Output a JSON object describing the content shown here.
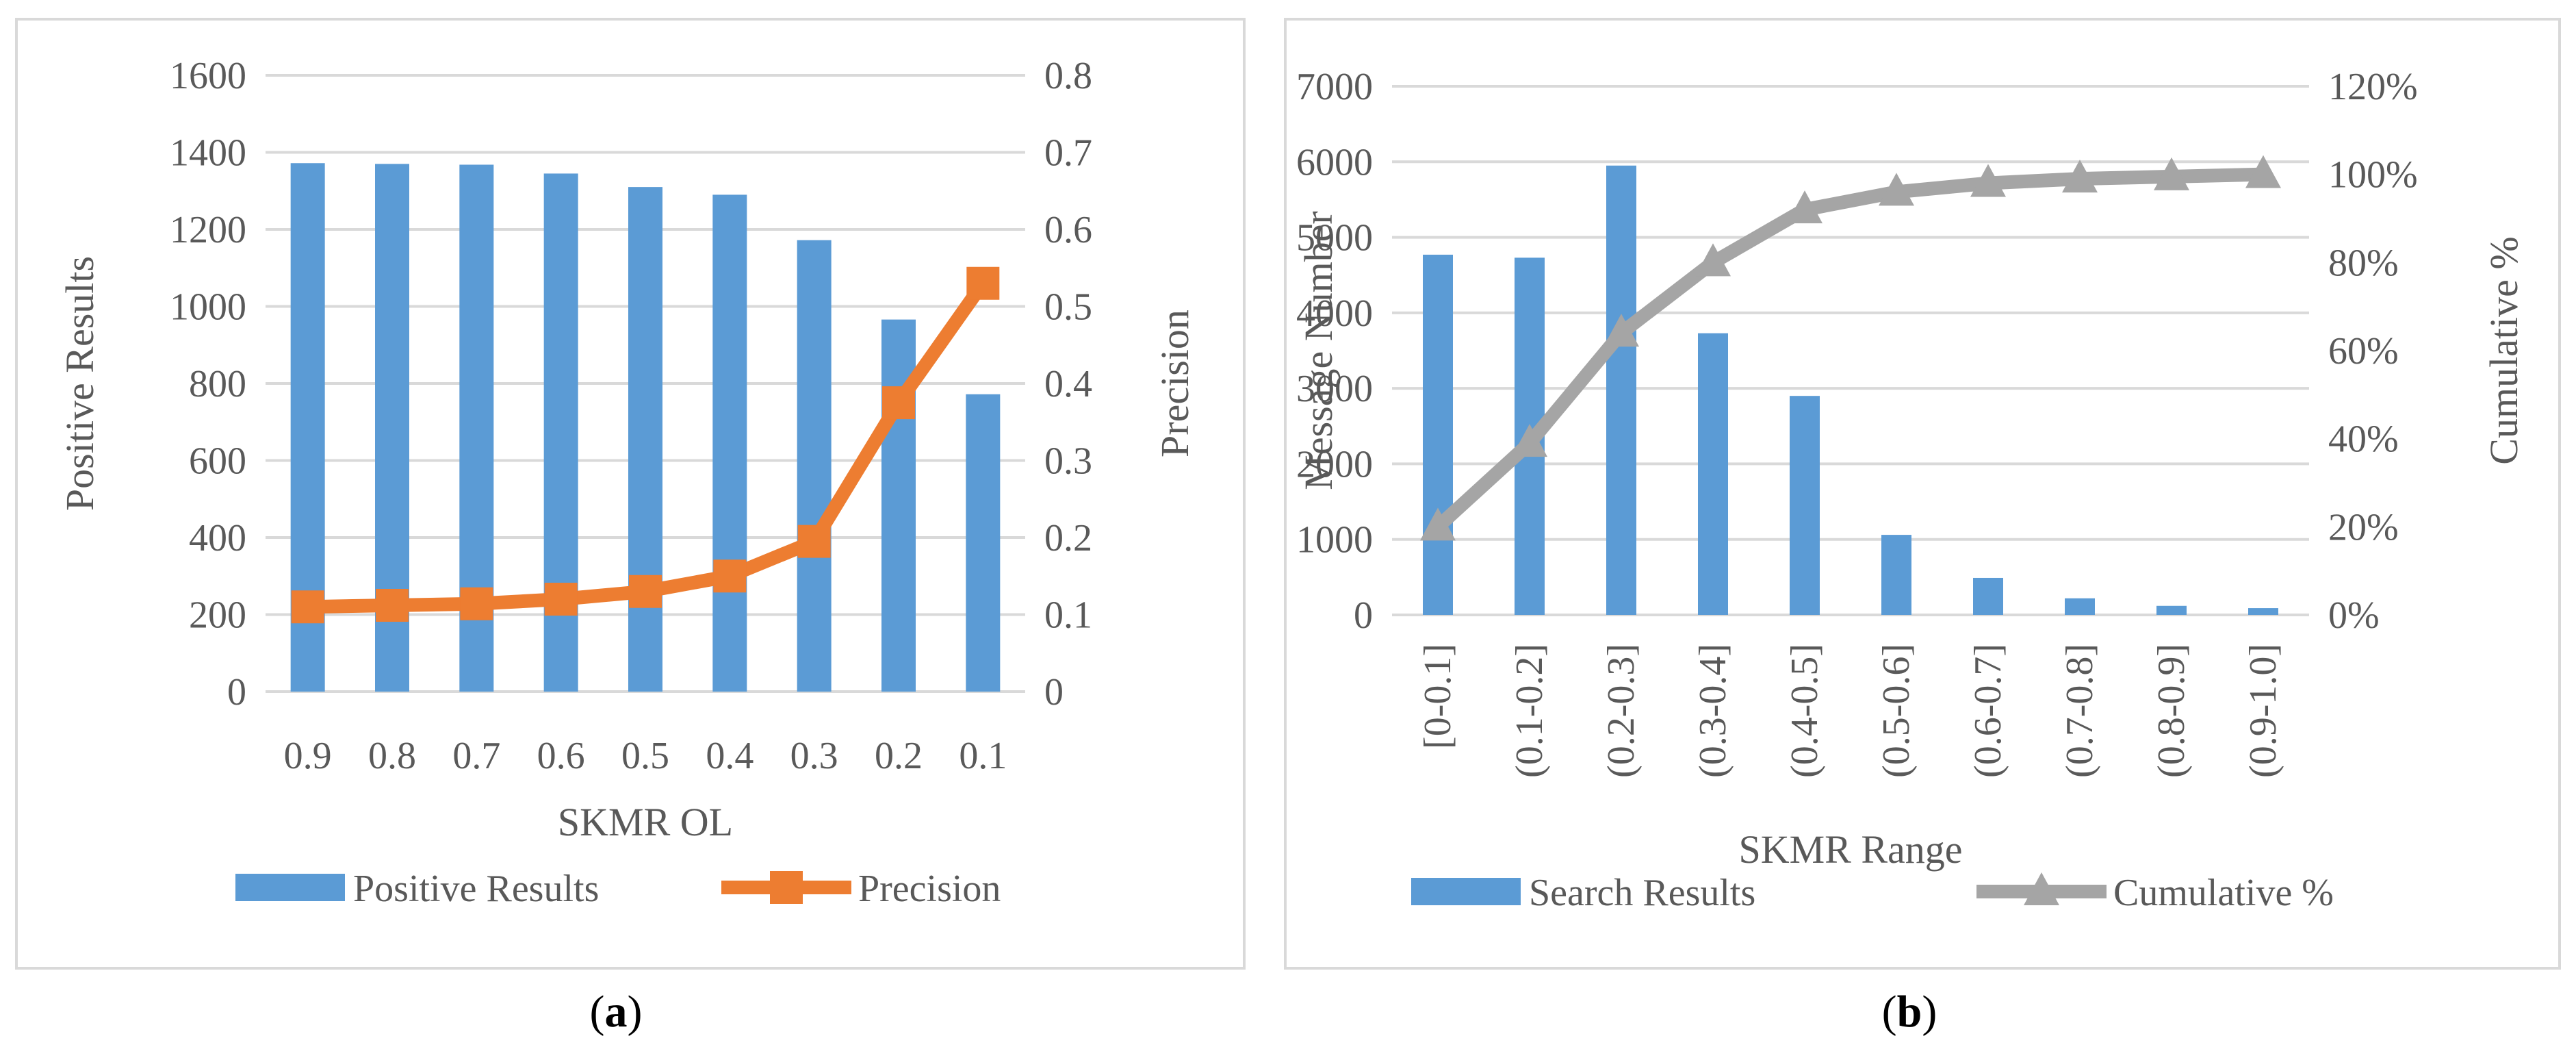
{
  "chart_data": [
    {
      "type": "bar",
      "title": "",
      "caption_letter": "a",
      "xlabel": "SKMR OL",
      "ylabel": "Positive Results",
      "y2label": "Precision",
      "categories": [
        "0.9",
        "0.8",
        "0.7",
        "0.6",
        "0.5",
        "0.4",
        "0.3",
        "0.2",
        "0.1"
      ],
      "ylim": [
        0,
        1600
      ],
      "yticks": [
        "0",
        "200",
        "400",
        "600",
        "800",
        "1000",
        "1200",
        "1400",
        "1600"
      ],
      "y2lim": [
        0,
        0.8
      ],
      "y2ticks": [
        "0",
        "0.1",
        "0.2",
        "0.3",
        "0.4",
        "0.5",
        "0.6",
        "0.7",
        "0.8"
      ],
      "grid": true,
      "legend_position": "bottom",
      "series": [
        {
          "name": "Positive Results",
          "kind": "bar",
          "axis": "left",
          "color": "#5b9bd5",
          "values": [
            1372,
            1370,
            1368,
            1345,
            1310,
            1290,
            1172,
            966,
            772
          ]
        },
        {
          "name": "Precision",
          "kind": "line",
          "axis": "right",
          "marker": "square",
          "color": "#ed7d31",
          "values": [
            0.11,
            0.112,
            0.114,
            0.12,
            0.13,
            0.15,
            0.195,
            0.375,
            0.53
          ]
        }
      ]
    },
    {
      "type": "bar",
      "title": "",
      "caption_letter": "b",
      "xlabel": "SKMR Range",
      "ylabel": "Message Number",
      "y2label": "Cumulative %",
      "categories": [
        "[0-0.1]",
        "(0.1-0.2]",
        "(0.2-0.3]",
        "(0.3-0.4]",
        "(0.4-0.5]",
        "(0.5-0.6]",
        "(0.6-0.7]",
        "(0.7-0.8]",
        "(0.8-0.9]",
        "(0.9-1.0]"
      ],
      "ylim": [
        0,
        7000
      ],
      "yticks": [
        "0",
        "1000",
        "2000",
        "3000",
        "4000",
        "5000",
        "6000",
        "7000"
      ],
      "y2lim": [
        0,
        120
      ],
      "y2ticks": [
        "0%",
        "20%",
        "40%",
        "60%",
        "80%",
        "100%",
        "120%"
      ],
      "grid": true,
      "legend_position": "bottom",
      "series": [
        {
          "name": "Search Results",
          "kind": "bar",
          "axis": "left",
          "color": "#5b9bd5",
          "values": [
            4770,
            4730,
            5950,
            3730,
            2900,
            1060,
            490,
            220,
            120,
            90
          ]
        },
        {
          "name": "Cumulative %",
          "kind": "line",
          "axis": "right",
          "marker": "triangle",
          "color": "#a5a5a5",
          "values": [
            20,
            39,
            64,
            80,
            92,
            96,
            98,
            99,
            99.5,
            100
          ]
        }
      ]
    }
  ]
}
